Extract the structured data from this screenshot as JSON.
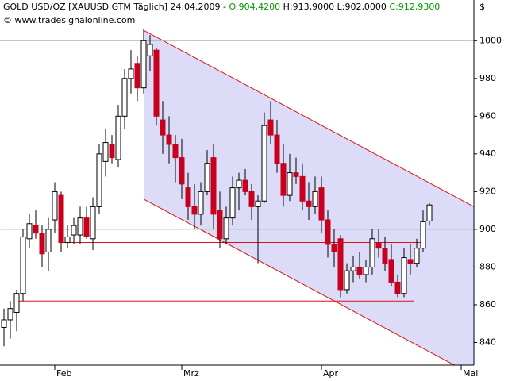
{
  "chart_data": {
    "type": "candlestick",
    "header": {
      "symbol": "GOLD USD/OZ [XAUUSD GTM  Täglich]",
      "date": "24.04.2009",
      "open": "O:904,4200",
      "high": "H:913,9000",
      "low": "L:902,0000",
      "close": "C:912,9300"
    },
    "copyright": "© www.tradesignalonline.com",
    "y_unit": "$",
    "xlim": [
      -0.625,
      74
    ],
    "xticks": [
      {
        "value": 8,
        "label": "Feb"
      },
      {
        "value": 28,
        "label": "Mrz"
      },
      {
        "value": 50,
        "label": "Apr"
      },
      {
        "value": 72,
        "label": "Mai"
      }
    ],
    "ylim": [
      828,
      1014
    ],
    "yticks": [
      840,
      860,
      880,
      900,
      920,
      940,
      960,
      980,
      1000
    ],
    "up_color": "#ffffff",
    "down_color": "#c8001e",
    "open": [
      848,
      852,
      856,
      866,
      895,
      902,
      898,
      888,
      905,
      918,
      893,
      897,
      897,
      906,
      895,
      912,
      936,
      945,
      937,
      960,
      980,
      988,
      975,
      992,
      995,
      958,
      950,
      945,
      938,
      922,
      912,
      908,
      920,
      938,
      910,
      895,
      906,
      922,
      926,
      920,
      912,
      915,
      958,
      950,
      935,
      918,
      930,
      928,
      915,
      912,
      922,
      905,
      892,
      895,
      868,
      878,
      880,
      876,
      880,
      893,
      890,
      884,
      872,
      866,
      884,
      882,
      890,
      904.42
    ],
    "high": [
      858,
      862,
      868,
      900,
      908,
      910,
      902,
      906,
      925,
      920,
      902,
      906,
      912,
      912,
      917,
      945,
      953,
      950,
      966,
      985,
      995,
      992,
      1006,
      1003,
      996,
      968,
      960,
      950,
      948,
      930,
      924,
      925,
      942,
      945,
      920,
      912,
      928,
      930,
      932,
      924,
      918,
      962,
      968,
      958,
      945,
      940,
      938,
      935,
      925,
      928,
      928,
      910,
      900,
      897,
      882,
      886,
      888,
      884,
      900,
      900,
      896,
      892,
      876,
      890,
      892,
      895,
      910,
      913.9
    ],
    "low": [
      838,
      842,
      846,
      862,
      890,
      895,
      880,
      878,
      898,
      888,
      890,
      892,
      892,
      895,
      889,
      908,
      928,
      935,
      933,
      953,
      972,
      968,
      972,
      984,
      955,
      940,
      935,
      925,
      916,
      905,
      900,
      902,
      918,
      900,
      890,
      892,
      902,
      910,
      918,
      905,
      882,
      914,
      945,
      930,
      912,
      915,
      924,
      910,
      905,
      908,
      898,
      885,
      880,
      864,
      866,
      872,
      874,
      872,
      876,
      885,
      878,
      870,
      864,
      864,
      876,
      880,
      888,
      902
    ],
    "close": [
      852,
      858,
      866,
      896,
      903,
      898,
      887,
      900,
      920,
      893,
      896,
      902,
      906,
      896,
      912,
      940,
      946,
      938,
      960,
      980,
      985,
      975,
      1000,
      998,
      960,
      950,
      945,
      938,
      924,
      912,
      908,
      920,
      935,
      908,
      895,
      906,
      922,
      926,
      920,
      912,
      915,
      955,
      950,
      935,
      918,
      930,
      928,
      915,
      912,
      920,
      905,
      892,
      888,
      868,
      878,
      880,
      876,
      880,
      895,
      890,
      882,
      872,
      866,
      885,
      882,
      890,
      904,
      912.93
    ],
    "channel": {
      "color": "#dcdcf8",
      "line_color": "#e01010",
      "upper": [
        [
          22,
          1005.5
        ],
        [
          74,
          912
        ]
      ],
      "lower": [
        [
          22,
          916
        ],
        [
          74,
          822.5
        ]
      ]
    },
    "lines": [
      {
        "color": "#e01010",
        "points": [
          [
            8.9,
            893
          ],
          [
            65.6,
            893
          ]
        ]
      },
      {
        "color": "#e01010",
        "points": [
          [
            2.1,
            862
          ],
          [
            64.6,
            862
          ]
        ]
      },
      {
        "color": "#a0c0a0",
        "points": [
          [
            -0.625,
            1000
          ],
          [
            74,
            1000
          ]
        ]
      },
      {
        "color": "#a0c0a0",
        "points": [
          [
            -0.625,
            900
          ],
          [
            74,
            900
          ]
        ]
      }
    ]
  }
}
